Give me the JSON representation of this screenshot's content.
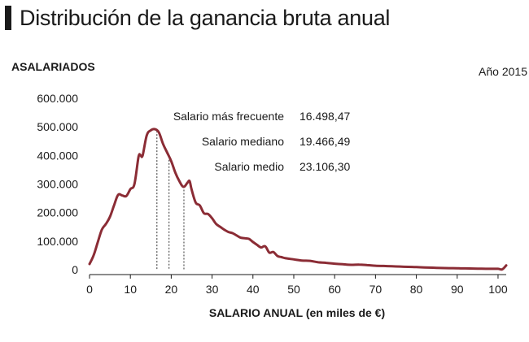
{
  "header": {
    "title": "Distribución de la ganancia bruta anual"
  },
  "chart_data": {
    "type": "line",
    "ylabel": "ASALARIADOS",
    "xlabel": "SALARIO ANUAL (en miles de €)",
    "year_label": "Año 2015",
    "xlim": [
      0,
      102
    ],
    "ylim": [
      0,
      600000
    ],
    "y_ticks": [
      "600.000",
      "500.000",
      "400.000",
      "300.000",
      "200.000",
      "100.000",
      "0"
    ],
    "y_tick_values": [
      600000,
      500000,
      400000,
      300000,
      200000,
      100000,
      0
    ],
    "x_ticks": [
      "0",
      "10",
      "20",
      "30",
      "40",
      "50",
      "60",
      "70",
      "80",
      "90",
      "100"
    ],
    "x_tick_values": [
      0,
      10,
      20,
      30,
      40,
      50,
      60,
      70,
      80,
      90,
      100
    ],
    "grid": false,
    "series": [
      {
        "color": "#8b2c35",
        "x": [
          0,
          1,
          2,
          3,
          4,
          5,
          6,
          7,
          8,
          9,
          10,
          11,
          12,
          12.5,
          13,
          14,
          15,
          16,
          17,
          18,
          19,
          20,
          21,
          22,
          23,
          24,
          24.5,
          25,
          26,
          27,
          28,
          29,
          30,
          31,
          32,
          33,
          34,
          35,
          36,
          37,
          38,
          39,
          40,
          41,
          42,
          43,
          44,
          45,
          46,
          47,
          48,
          50,
          52,
          54,
          56,
          58,
          60,
          62,
          64,
          66,
          68,
          70,
          72,
          74,
          76,
          78,
          80,
          82,
          84,
          86,
          88,
          90,
          92,
          94,
          96,
          98,
          100,
          101,
          102
        ],
        "y": [
          20000,
          50000,
          95000,
          140000,
          160000,
          185000,
          225000,
          262000,
          260000,
          258000,
          282000,
          300000,
          395000,
          400000,
          400000,
          470000,
          488000,
          492000,
          480000,
          440000,
          410000,
          380000,
          340000,
          310000,
          290000,
          305000,
          310000,
          280000,
          235000,
          225000,
          198000,
          195000,
          180000,
          160000,
          150000,
          140000,
          132000,
          128000,
          120000,
          112000,
          110000,
          108000,
          97000,
          87000,
          78000,
          82000,
          60000,
          62000,
          48000,
          44000,
          40000,
          36000,
          32000,
          31000,
          26000,
          24000,
          21000,
          19000,
          17000,
          18000,
          16000,
          14000,
          13000,
          12000,
          11000,
          10000,
          9000,
          8000,
          7000,
          6000,
          5500,
          5000,
          4500,
          4000,
          3500,
          3000,
          3000,
          1000,
          15000
        ]
      }
    ],
    "reference_lines": [
      {
        "label": "Salario más frecuente",
        "value_label": "16.498,47",
        "x": 16.498
      },
      {
        "label": "Salario mediano",
        "value_label": "19.466,49",
        "x": 19.466
      },
      {
        "label": "Salario medio",
        "value_label": "23.106,30",
        "x": 23.106
      }
    ]
  }
}
